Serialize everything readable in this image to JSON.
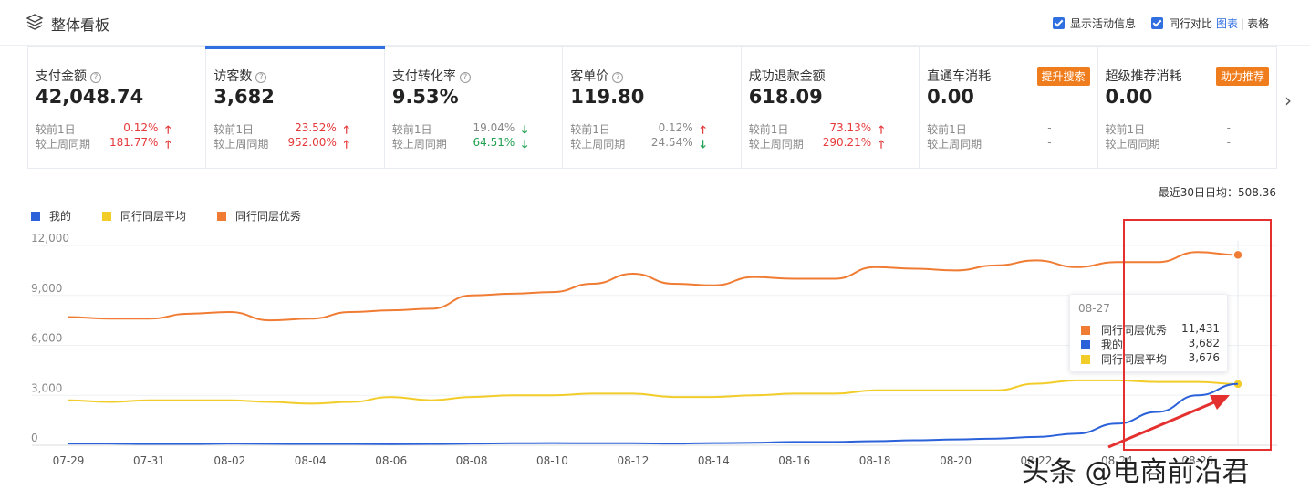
{
  "header": {
    "title": "整体看板",
    "show_activity_label": "显示活动信息",
    "compare_label": "同行对比",
    "view_chart_label": "图表",
    "view_table_label": "表格"
  },
  "cards": [
    {
      "name": "支付金额",
      "value": "42,048.74",
      "help": "?",
      "prev_day_label": "较前1日",
      "prev_day_pct": "0.12%",
      "prev_day_dir": "up",
      "prev_week_label": "较上周同期",
      "prev_week_pct": "181.77%",
      "prev_week_dir": "up"
    },
    {
      "name": "访客数",
      "value": "3,682",
      "help": "?",
      "prev_day_label": "较前1日",
      "prev_day_pct": "23.52%",
      "prev_day_dir": "up",
      "prev_week_label": "较上周同期",
      "prev_week_pct": "952.00%",
      "prev_week_dir": "up"
    },
    {
      "name": "支付转化率",
      "value": "9.53%",
      "help": "?",
      "prev_day_label": "较前1日",
      "prev_day_pct": "19.04%",
      "prev_day_dir": "down",
      "prev_week_label": "较上周同期",
      "prev_week_pct": "64.51%",
      "prev_week_dir": "down"
    },
    {
      "name": "客单价",
      "value": "119.80",
      "help": "?",
      "prev_day_label": "较前1日",
      "prev_day_pct": "0.12%",
      "prev_day_dir": "up",
      "prev_week_label": "较上周同期",
      "prev_week_pct": "24.54%",
      "prev_week_dir": "down"
    },
    {
      "name": "成功退款金额",
      "value": "618.09",
      "prev_day_label": "较前1日",
      "prev_day_pct": "73.13%",
      "prev_day_dir": "up",
      "prev_week_label": "较上周同期",
      "prev_week_pct": "290.21%",
      "prev_week_dir": "up"
    },
    {
      "name": "直通车消耗",
      "value": "0.00",
      "badge": "提升搜索",
      "prev_day_label": "较前1日",
      "prev_day_pct": "-",
      "prev_week_label": "较上周同期",
      "prev_week_pct": "-"
    },
    {
      "name": "超级推荐消耗",
      "value": "0.00",
      "badge": "助力推荐",
      "prev_day_label": "较前1日",
      "prev_day_pct": "-",
      "prev_week_label": "较上周同期",
      "prev_week_pct": "-"
    }
  ],
  "avg_text": "最近30日日均：508.36",
  "legend": {
    "mine": "我的",
    "peer_avg": "同行同层平均",
    "peer_top": "同行同层优秀"
  },
  "colors": {
    "mine": "#2b62d9",
    "peer_avg": "#f2cd2a",
    "peer_top": "#f07c34",
    "accent": "#2f6fe0",
    "up": "#e5393a",
    "down": "#20a052"
  },
  "tooltip": {
    "date": "08-27",
    "rows": [
      {
        "label": "同行同层优秀",
        "value": "11,431",
        "color": "#f07c34"
      },
      {
        "label": "我的",
        "value": "3,682",
        "color": "#2b62d9"
      },
      {
        "label": "同行同层平均",
        "value": "3,676",
        "color": "#f2cd2a"
      }
    ]
  },
  "watermark": "头条 @电商前沿君",
  "chart_data": {
    "type": "line",
    "title": "",
    "xlabel": "",
    "ylabel": "",
    "ylim": [
      0,
      12000
    ],
    "yticks": [
      "12,000",
      "9,000",
      "6,000",
      "3,000",
      "0"
    ],
    "ytick_values": [
      12000,
      9000,
      6000,
      3000,
      0
    ],
    "x_tick_labels": [
      "07-29",
      "07-31",
      "08-02",
      "08-04",
      "08-06",
      "08-08",
      "08-10",
      "08-12",
      "08-14",
      "08-16",
      "08-18",
      "08-20",
      "08-22",
      "08-24",
      "08-26"
    ],
    "x": [
      "07-29",
      "07-30",
      "07-31",
      "08-01",
      "08-02",
      "08-03",
      "08-04",
      "08-05",
      "08-06",
      "08-07",
      "08-08",
      "08-09",
      "08-10",
      "08-11",
      "08-12",
      "08-13",
      "08-14",
      "08-15",
      "08-16",
      "08-17",
      "08-18",
      "08-19",
      "08-20",
      "08-21",
      "08-22",
      "08-23",
      "08-24",
      "08-25",
      "08-26",
      "08-27"
    ],
    "series": [
      {
        "name": "同行同层优秀",
        "values": [
          7700,
          7600,
          7600,
          7900,
          8000,
          7500,
          7600,
          8000,
          8100,
          8200,
          9000,
          9100,
          9200,
          9700,
          10300,
          9700,
          9600,
          10100,
          10000,
          10000,
          10700,
          10600,
          10500,
          10800,
          11100,
          10700,
          11000,
          11000,
          11600,
          11431
        ]
      },
      {
        "name": "同行同层平均",
        "values": [
          2700,
          2600,
          2700,
          2700,
          2700,
          2600,
          2500,
          2600,
          2900,
          2700,
          2900,
          3000,
          3000,
          3100,
          3100,
          2900,
          2900,
          3000,
          3100,
          3100,
          3300,
          3300,
          3300,
          3300,
          3700,
          3900,
          3900,
          3800,
          3800,
          3676
        ]
      },
      {
        "name": "我的",
        "values": [
          100,
          100,
          80,
          80,
          100,
          90,
          80,
          80,
          70,
          80,
          100,
          120,
          130,
          120,
          120,
          100,
          130,
          150,
          200,
          200,
          250,
          300,
          350,
          400,
          500,
          700,
          1300,
          2000,
          3000,
          3682
        ]
      }
    ]
  }
}
